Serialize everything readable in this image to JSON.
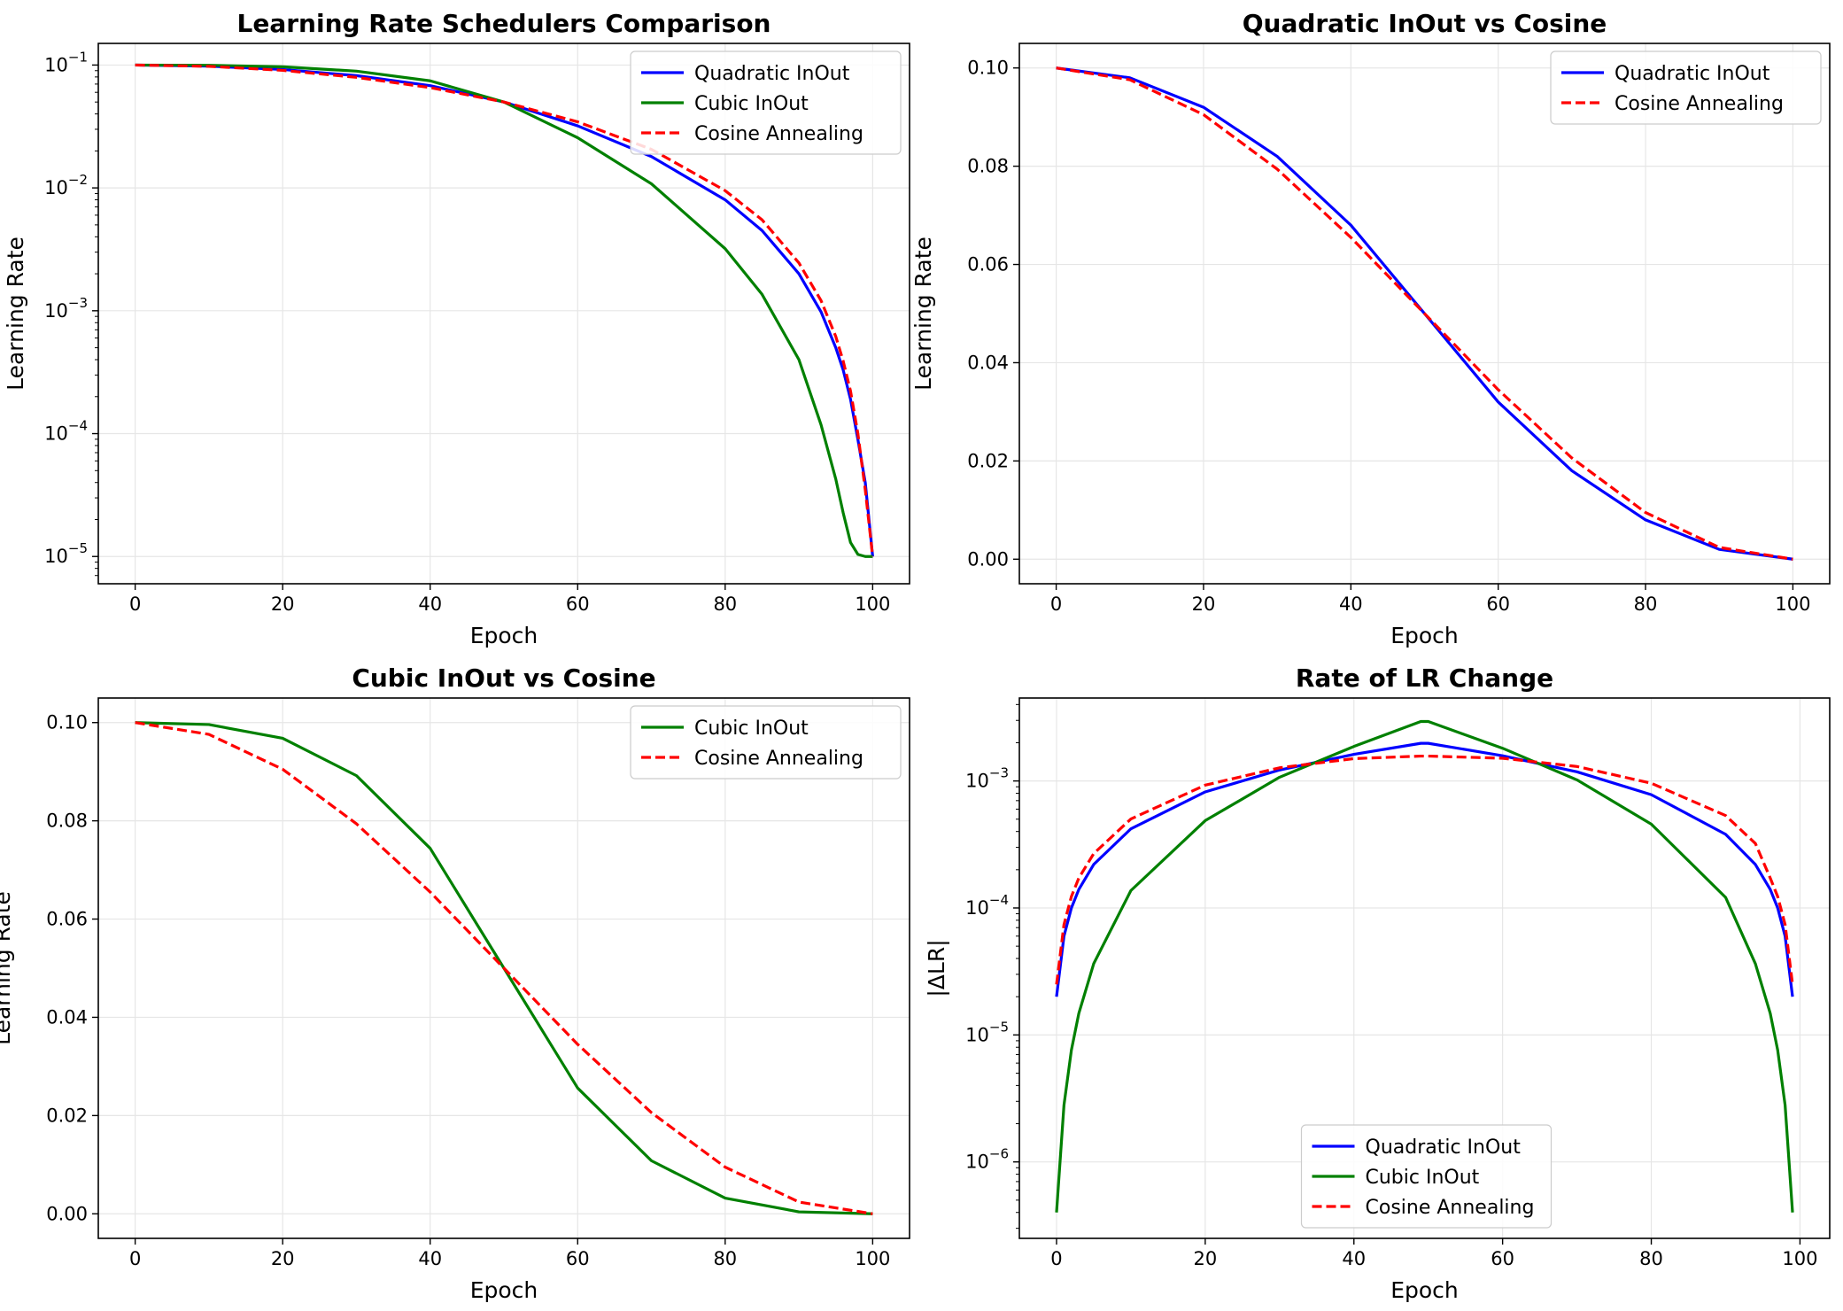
{
  "chart_data": [
    {
      "type": "line",
      "title": "Learning Rate Schedulers Comparison",
      "xlabel": "Epoch",
      "ylabel": "Learning Rate",
      "xlim": [
        -5,
        105
      ],
      "ylim": [
        6e-06,
        0.15
      ],
      "yscale": "log",
      "xticks": [
        0,
        20,
        40,
        60,
        80,
        100
      ],
      "yticks": [
        1e-05,
        0.0001,
        0.001,
        0.01,
        0.1
      ],
      "yticklabels": [
        [
          "10",
          "−5"
        ],
        [
          "10",
          "−4"
        ],
        [
          "10",
          "−3"
        ],
        [
          "10",
          "−2"
        ],
        [
          "10",
          "−1"
        ]
      ],
      "grid": true,
      "legend_position": "top-right",
      "legend_box": "sm",
      "x": [
        0,
        10,
        20,
        30,
        40,
        50,
        60,
        70,
        80,
        85,
        90,
        93,
        95,
        96,
        97,
        98,
        99,
        100
      ],
      "series": [
        {
          "name": "Quadratic InOut",
          "color": "#0000ff",
          "dash": "solid",
          "values": [
            0.1,
            0.098,
            0.092,
            0.082,
            0.068,
            0.05,
            0.032,
            0.018,
            0.008,
            0.0045,
            0.002,
            0.00098,
            0.0005,
            0.00033,
            0.00019,
            8.94e-05,
            3.98e-05,
            1e-05
          ]
        },
        {
          "name": "Cubic InOut",
          "color": "#008000",
          "dash": "solid",
          "values": [
            0.1,
            0.0996,
            0.0968,
            0.0892,
            0.0744,
            0.05,
            0.0256,
            0.0108,
            0.0032,
            0.00136,
            0.0004,
            0.000118,
            4.26e-05,
            2.27e-05,
            1.3e-05,
            1.04e-05,
            1e-05,
            1e-05
          ]
        },
        {
          "name": "Cosine Annealing",
          "color": "#ff0000",
          "dash": "dashed",
          "values": [
            0.1,
            0.0976,
            0.0905,
            0.0794,
            0.0655,
            0.05,
            0.0345,
            0.0206,
            0.0095,
            0.0055,
            0.00245,
            0.00121,
            0.000617,
            0.00039,
            0.000222,
            9.96e-05,
            3.47e-05,
            1e-05
          ]
        }
      ]
    },
    {
      "type": "line",
      "title": "Quadratic InOut vs Cosine",
      "xlabel": "Epoch",
      "ylabel": "Learning Rate",
      "xlim": [
        -5,
        105
      ],
      "ylim": [
        -0.005,
        0.105
      ],
      "yscale": "linear",
      "xticks": [
        0,
        20,
        40,
        60,
        80,
        100
      ],
      "yticks": [
        0,
        0.02,
        0.04,
        0.06,
        0.08,
        0.1
      ],
      "yticklabels": [
        "0.00",
        "0.02",
        "0.04",
        "0.06",
        "0.08",
        "0.10"
      ],
      "grid": true,
      "legend_position": "top-right",
      "legend_box": "sm",
      "x": [
        0,
        10,
        20,
        30,
        40,
        50,
        60,
        70,
        80,
        90,
        100
      ],
      "series": [
        {
          "name": "Quadratic InOut",
          "color": "#0000ff",
          "dash": "solid",
          "values": [
            0.1,
            0.098,
            0.092,
            0.082,
            0.068,
            0.05,
            0.032,
            0.018,
            0.008,
            0.002,
            0.0
          ]
        },
        {
          "name": "Cosine Annealing",
          "color": "#ff0000",
          "dash": "dashed",
          "values": [
            0.1,
            0.0976,
            0.0905,
            0.0794,
            0.0655,
            0.05,
            0.0345,
            0.0206,
            0.0095,
            0.0024,
            0.0
          ]
        }
      ]
    },
    {
      "type": "line",
      "title": "Cubic InOut vs Cosine",
      "xlabel": "Epoch",
      "ylabel": "Learning Rate",
      "xlim": [
        -5,
        105
      ],
      "ylim": [
        -0.005,
        0.105
      ],
      "yscale": "linear",
      "xticks": [
        0,
        20,
        40,
        60,
        80,
        100
      ],
      "yticks": [
        0,
        0.02,
        0.04,
        0.06,
        0.08,
        0.1
      ],
      "yticklabels": [
        "0.00",
        "0.02",
        "0.04",
        "0.06",
        "0.08",
        "0.10"
      ],
      "grid": true,
      "legend_position": "top-right",
      "legend_box": "sm",
      "x": [
        0,
        10,
        20,
        30,
        40,
        50,
        60,
        70,
        80,
        90,
        100
      ],
      "series": [
        {
          "name": "Cubic InOut",
          "color": "#008000",
          "dash": "solid",
          "values": [
            0.1,
            0.0996,
            0.0968,
            0.0892,
            0.0744,
            0.05,
            0.0256,
            0.0108,
            0.0032,
            0.0004,
            0.0
          ]
        },
        {
          "name": "Cosine Annealing",
          "color": "#ff0000",
          "dash": "dashed",
          "values": [
            0.1,
            0.0976,
            0.0905,
            0.0794,
            0.0655,
            0.05,
            0.0345,
            0.0206,
            0.0095,
            0.0024,
            0.0
          ]
        }
      ]
    },
    {
      "type": "line",
      "title": "Rate of LR Change",
      "xlabel": "Epoch",
      "ylabel": "|ΔLR|",
      "xlim": [
        -5,
        104
      ],
      "ylim": [
        2.5e-07,
        0.0045
      ],
      "yscale": "log",
      "xticks": [
        0,
        20,
        40,
        60,
        80,
        100
      ],
      "yticks": [
        1e-06,
        1e-05,
        0.0001,
        0.001
      ],
      "yticklabels": [
        [
          "10",
          "−6"
        ],
        [
          "10",
          "−5"
        ],
        [
          "10",
          "−4"
        ],
        [
          "10",
          "−3"
        ]
      ],
      "grid": true,
      "legend_position": "bottom-center",
      "legend_box": "lg",
      "x": [
        0,
        1,
        2,
        3,
        5,
        10,
        20,
        30,
        40,
        49,
        50,
        60,
        70,
        80,
        90,
        94,
        96,
        97,
        98,
        99
      ],
      "series": [
        {
          "name": "Quadratic InOut",
          "color": "#0000ff",
          "dash": "solid",
          "values": [
            2e-05,
            6e-05,
            0.0001,
            0.00014,
            0.00022,
            0.00042,
            0.00082,
            0.00122,
            0.00162,
            0.00198,
            0.00198,
            0.00158,
            0.00118,
            0.00078,
            0.00038,
            0.00022,
            0.00014,
            0.0001,
            6e-05,
            2e-05
          ]
        },
        {
          "name": "Cubic InOut",
          "color": "#008000",
          "dash": "solid",
          "values": [
            4e-07,
            2.8e-06,
            7.6e-06,
            1.48e-05,
            3.64e-05,
            0.000137,
            0.000487,
            0.00107,
            0.00187,
            0.00294,
            0.00294,
            0.00181,
            0.00102,
            0.000457,
            0.000121,
            3.64e-05,
            1.48e-05,
            7.6e-06,
            2.8e-06,
            4e-07
          ]
        },
        {
          "name": "Cosine Annealing",
          "color": "#ff0000",
          "dash": "dashed",
          "values": [
            2.5e-05,
            7.4e-05,
            0.000123,
            0.000172,
            0.000268,
            0.000502,
            0.000927,
            0.00127,
            0.0015,
            0.00157,
            0.00157,
            0.00151,
            0.0013,
            0.00096,
            0.000534,
            0.000322,
            0.000172,
            0.000123,
            7.4e-05,
            2.5e-05
          ]
        }
      ]
    }
  ]
}
